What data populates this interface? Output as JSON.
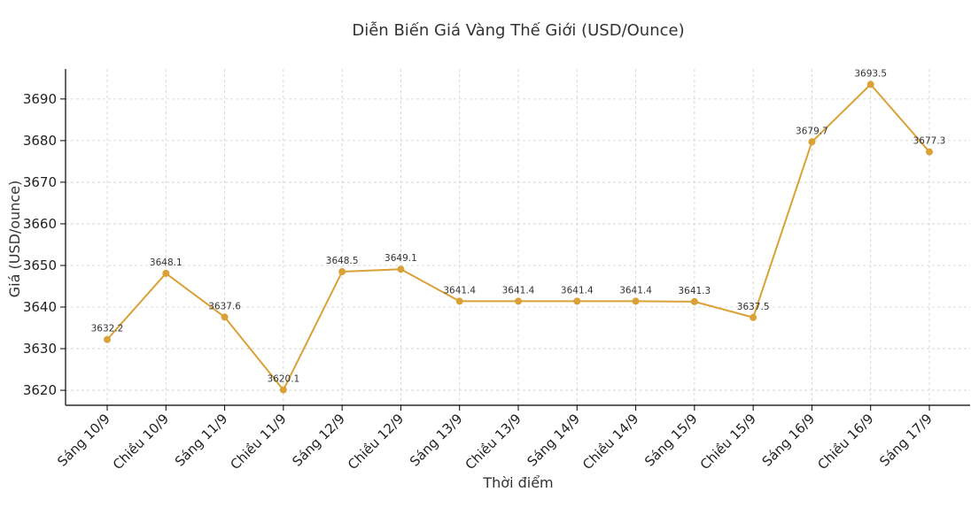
{
  "chart_data": {
    "type": "line",
    "title": "Diễn Biến Giá Vàng Thế Giới (USD/Ounce)",
    "xlabel": "Thời điểm",
    "ylabel": "Giá (USD/ounce)",
    "categories": [
      "Sáng 10/9",
      "Chiều 10/9",
      "Sáng 11/9",
      "Chiều 11/9",
      "Sáng 12/9",
      "Chiều 12/9",
      "Sáng 13/9",
      "Chiều 13/9",
      "Sáng 14/9",
      "Chiều 14/9",
      "Sáng 15/9",
      "Chiều 15/9",
      "Sáng 16/9",
      "Chiều 16/9",
      "Sáng 17/9"
    ],
    "series": [
      {
        "values": [
          3632.2,
          3648.1,
          3637.6,
          3620.1,
          3648.5,
          3649.1,
          3641.4,
          3641.4,
          3641.4,
          3641.4,
          3641.3,
          3637.5,
          3679.7,
          3693.5,
          3677.3
        ],
        "data_labels": [
          "3632.2",
          "3648.1",
          "3637.6",
          "3620.1",
          "3648.5",
          "3649.1",
          "3641.4",
          "3641.4",
          "3641.4",
          "3641.4",
          "3641.3",
          "3637.5",
          "3679.7",
          "3693.5",
          "3677.3"
        ],
        "color": "#DAA137"
      }
    ],
    "ylim": [
      3616.4,
      3697.2
    ],
    "yticks": [
      3620,
      3630,
      3640,
      3650,
      3660,
      3670,
      3680,
      3690
    ],
    "ytick_labels": [
      "3620",
      "3630",
      "3640",
      "3650",
      "3660",
      "3670",
      "3680",
      "3690"
    ],
    "grid": true,
    "legend": "none"
  }
}
